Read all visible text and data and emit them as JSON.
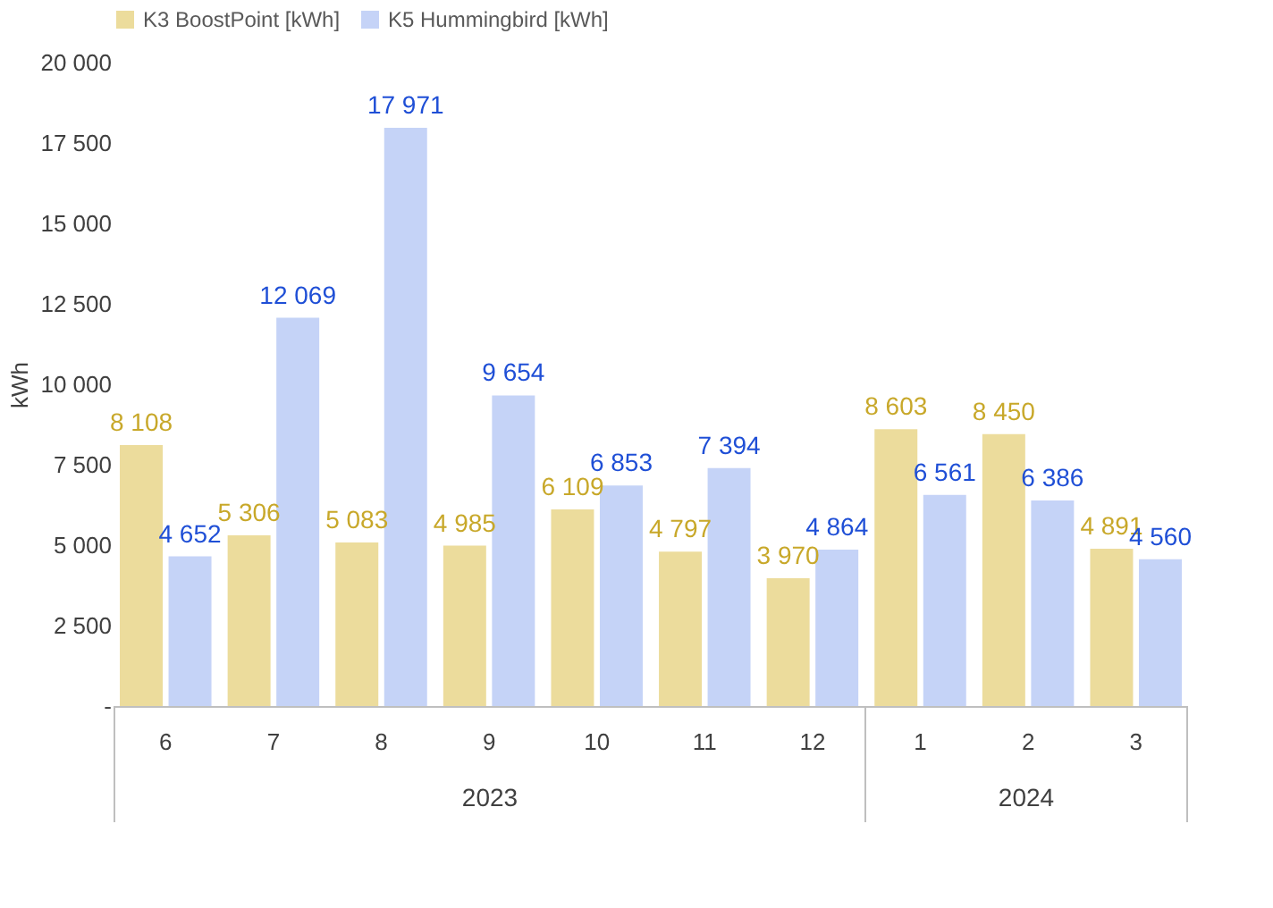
{
  "chart_data": {
    "type": "bar",
    "ylabel": "kWh",
    "categories": [
      "6",
      "7",
      "8",
      "9",
      "10",
      "11",
      "12",
      "1",
      "2",
      "3"
    ],
    "series": [
      {
        "name": "K3 BoostPoint [kWh]",
        "color": "#ecdc9c",
        "values": [
          8108,
          5306,
          5083,
          4985,
          6109,
          4797,
          3970,
          8603,
          8450,
          4891
        ],
        "value_labels": [
          "8 108",
          "5 306",
          "5 083",
          "4 985",
          "6 109",
          "4 797",
          "3 970",
          "8 603",
          "8 450",
          "4 891"
        ]
      },
      {
        "name": "K5 Hummingbird [kWh]",
        "color": "#c5d3f7",
        "values": [
          4652,
          12069,
          17971,
          9654,
          6853,
          7394,
          4864,
          6561,
          6386,
          4560
        ],
        "value_labels": [
          "4 652",
          "12 069",
          "17 971",
          "9 654",
          "6 853",
          "7 394",
          "4 864",
          "6 561",
          "6 386",
          "4 560"
        ]
      }
    ],
    "ylim": [
      0,
      20000
    ],
    "yticks": [
      {
        "value": 0,
        "label": "-"
      },
      {
        "value": 2500,
        "label": "2 500"
      },
      {
        "value": 5000,
        "label": "5 000"
      },
      {
        "value": 7500,
        "label": "7 500"
      },
      {
        "value": 10000,
        "label": "10 000"
      },
      {
        "value": 12500,
        "label": "12 500"
      },
      {
        "value": 15000,
        "label": "15 000"
      },
      {
        "value": 17500,
        "label": "17 500"
      },
      {
        "value": 20000,
        "label": "20 000"
      }
    ],
    "annotations": [
      "2023",
      "2024"
    ],
    "grid": false,
    "legend": "top"
  }
}
